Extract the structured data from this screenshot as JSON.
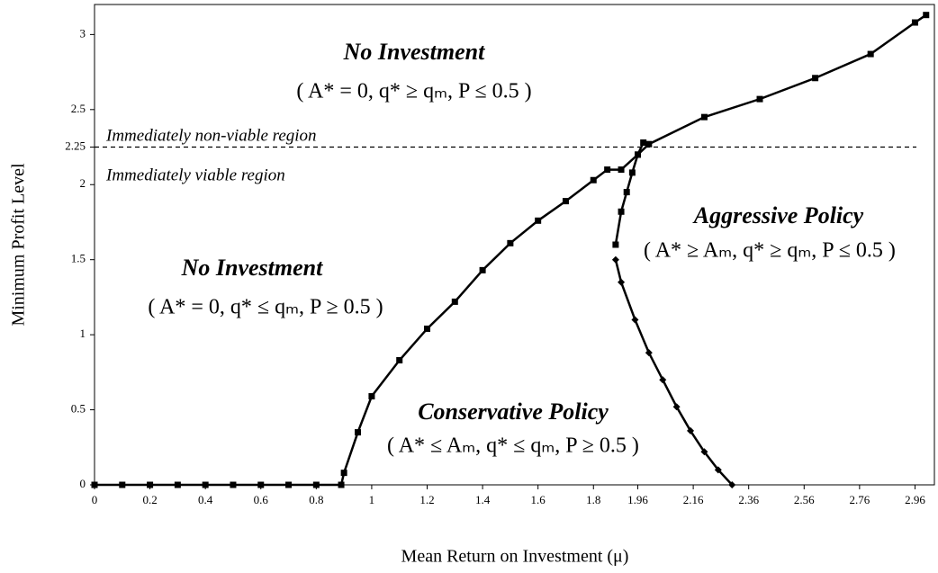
{
  "chart_data": {
    "type": "line",
    "xlabel": "Mean Return on Investment (μ)",
    "ylabel": "Minimum Profit Level",
    "xlim": [
      0,
      3.03
    ],
    "ylim": [
      0,
      3.2
    ],
    "xticks": [
      0,
      0.2,
      0.4,
      0.6,
      0.8,
      1,
      1.2,
      1.4,
      1.6,
      1.8,
      1.96,
      2.16,
      2.36,
      2.56,
      2.76,
      2.96
    ],
    "yticks": [
      0,
      0.5,
      1,
      1.5,
      2,
      2.25,
      2.5,
      3
    ],
    "hline": 2.25,
    "series": [
      {
        "color": "#000000",
        "marker": "square",
        "x": [
          0,
          0.1,
          0.2,
          0.3,
          0.4,
          0.5,
          0.6,
          0.7,
          0.8,
          0.89,
          0.9,
          0.95,
          1.0,
          1.1,
          1.2,
          1.3,
          1.4,
          1.5,
          1.6,
          1.7,
          1.8,
          1.85,
          1.9,
          1.96,
          2.0,
          2.2,
          2.4,
          2.6,
          2.8,
          2.96,
          3.0
        ],
        "values": [
          0,
          0,
          0,
          0,
          0,
          0,
          0,
          0,
          0,
          0,
          0.08,
          0.35,
          0.59,
          0.83,
          1.04,
          1.22,
          1.43,
          1.61,
          1.76,
          1.89,
          2.03,
          2.1,
          2.1,
          2.2,
          2.27,
          2.45,
          2.57,
          2.71,
          2.87,
          3.08,
          3.13
        ]
      },
      {
        "color": "#000000",
        "marker": "square",
        "x": [
          1.88,
          1.9,
          1.92,
          1.94,
          1.96,
          1.98
        ],
        "values": [
          1.6,
          1.82,
          1.95,
          2.08,
          2.2,
          2.28
        ]
      },
      {
        "color": "#000000",
        "marker": "diamond",
        "x": [
          1.88,
          1.9,
          1.95,
          2.0,
          2.05,
          2.1,
          2.15,
          2.2,
          2.25,
          2.3
        ],
        "values": [
          1.5,
          1.35,
          1.1,
          0.88,
          0.7,
          0.52,
          0.36,
          0.22,
          0.1,
          0.0
        ]
      }
    ],
    "annotations": [
      "No Investment",
      "( A* = 0, q* ≥ qₘ, P ≤ 0.5 )",
      "Immediately non-viable region",
      "Immediately viable region",
      "No Investment",
      "( A* = 0, q* ≤ qₘ, P ≥ 0.5 )",
      "Conservative Policy",
      "( A* ≤ Aₘ, q* ≤ qₘ, P ≥ 0.5 )",
      "Aggressive Policy",
      "( A* ≥ Aₘ, q* ≥ qₘ, P ≤ 0.5 )"
    ]
  }
}
